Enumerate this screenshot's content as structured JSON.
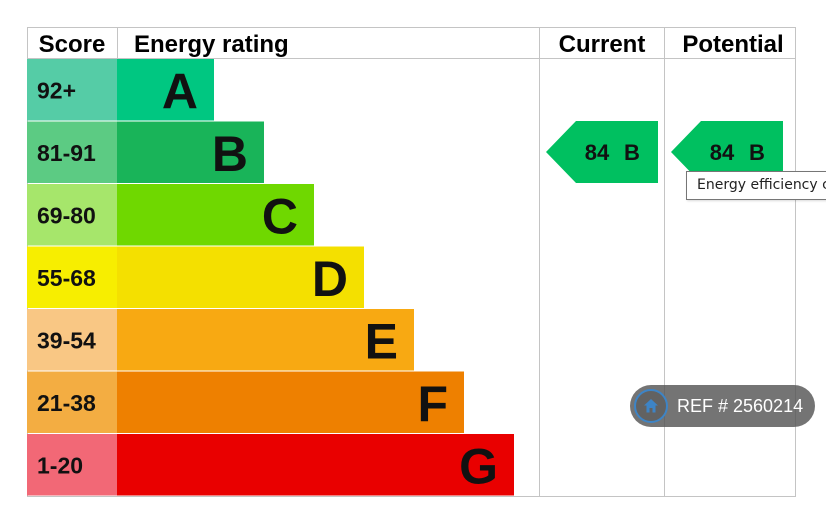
{
  "headers": {
    "score": "Score",
    "rating": "Energy rating",
    "current": "Current",
    "potential": "Potential"
  },
  "chart_data": {
    "type": "bar",
    "categories": [
      "A",
      "B",
      "C",
      "D",
      "E",
      "F",
      "G"
    ],
    "score_ranges": [
      "92+",
      "81-91",
      "69-80",
      "55-68",
      "39-54",
      "21-38",
      "1-20"
    ],
    "bar_colors": [
      "#00c781",
      "#19b459",
      "#6fd800",
      "#f4e000",
      "#f8a912",
      "#ee8000",
      "#e90000"
    ],
    "score_cell_colors": [
      "#55cca6",
      "#5ccb83",
      "#a6e66b",
      "#f7ee00",
      "#f9c784",
      "#f3ad42",
      "#f26876"
    ],
    "current": {
      "score": "84",
      "band": "B",
      "color": "#00c060"
    },
    "potential": {
      "score": "84",
      "band": "B",
      "color": "#00c060"
    }
  },
  "tooltip": {
    "text": "Energy efficiency chart"
  },
  "ref_badge": {
    "label": "REF # 2560214",
    "icon": "home-icon"
  }
}
